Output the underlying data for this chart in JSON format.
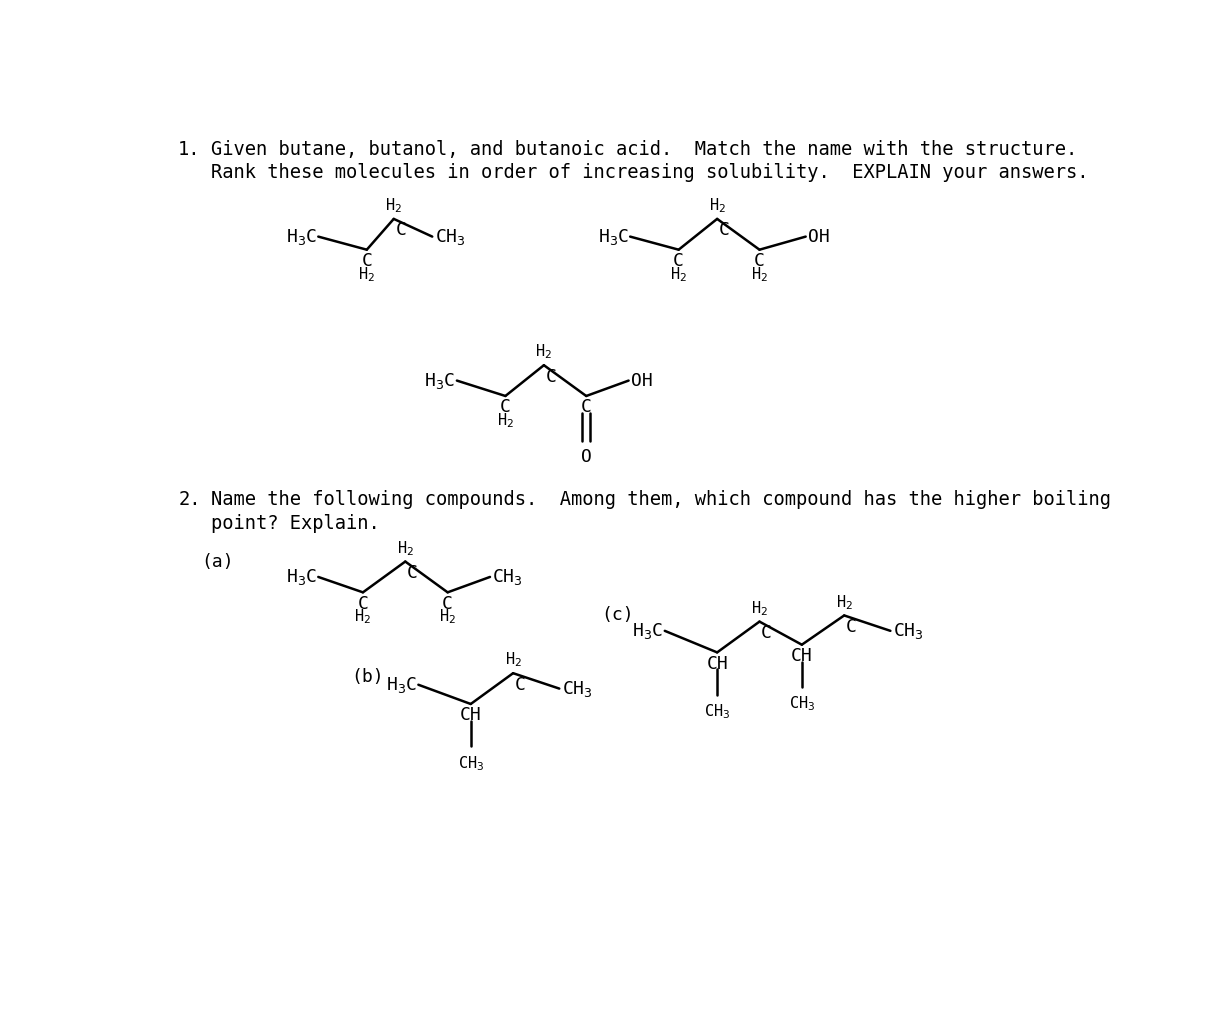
{
  "bg_color": "#ffffff",
  "text_color": "#000000",
  "q1_line1": "Given butane, butanol, and butanoic acid.  Match the name with the structure.",
  "q1_line2": "Rank these molecules in order of increasing solubility.  EXPLAIN your answers.",
  "q2_line1": "Name the following compounds.  Among them, which compound has the higher boiling",
  "q2_line2": "point? Explain.",
  "lw": 1.8,
  "fs_text": 13.5,
  "fs_struct": 13.0,
  "fs_sub": 11.0
}
